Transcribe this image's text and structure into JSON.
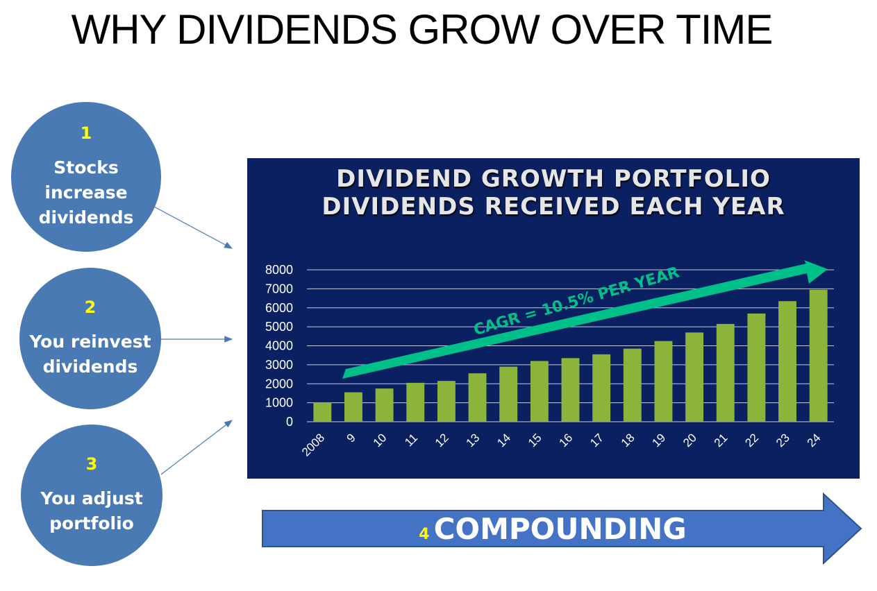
{
  "title": "WHY DIVIDENDS GROW OVER TIME",
  "reasons": [
    {
      "number": "1",
      "text": "Stocks increase dividends"
    },
    {
      "number": "2",
      "text": "You reinvest dividends"
    },
    {
      "number": "3",
      "text": "You adjust portfolio"
    }
  ],
  "compounding": {
    "number": "4",
    "label": "COMPOUNDING"
  },
  "colors": {
    "panel": "#0b2060",
    "bars": "#8db43a",
    "trend_arrow": "#00c08a",
    "circles": "#4a7ab4",
    "compounding_arrow": "#4472c4",
    "numbers": "#ffff00"
  },
  "chart_data": {
    "type": "bar",
    "title": "DIVIDEND GROWTH PORTFOLIO",
    "subtitle": "DIVIDENDS RECEIVED EACH YEAR",
    "categories": [
      "2008",
      "9",
      "10",
      "11",
      "12",
      "13",
      "14",
      "15",
      "16",
      "17",
      "18",
      "19",
      "20",
      "21",
      "22",
      "23",
      "24"
    ],
    "values": [
      1000,
      1550,
      1750,
      2050,
      2150,
      2550,
      2900,
      3200,
      3350,
      3550,
      3850,
      4250,
      4700,
      5150,
      5700,
      6350,
      6950
    ],
    "ylim": [
      0,
      8000
    ],
    "yticks": [
      0,
      1000,
      2000,
      3000,
      4000,
      5000,
      6000,
      7000,
      8000
    ],
    "grid": true,
    "annotation": "CAGR = 10.5% PER YEAR"
  }
}
